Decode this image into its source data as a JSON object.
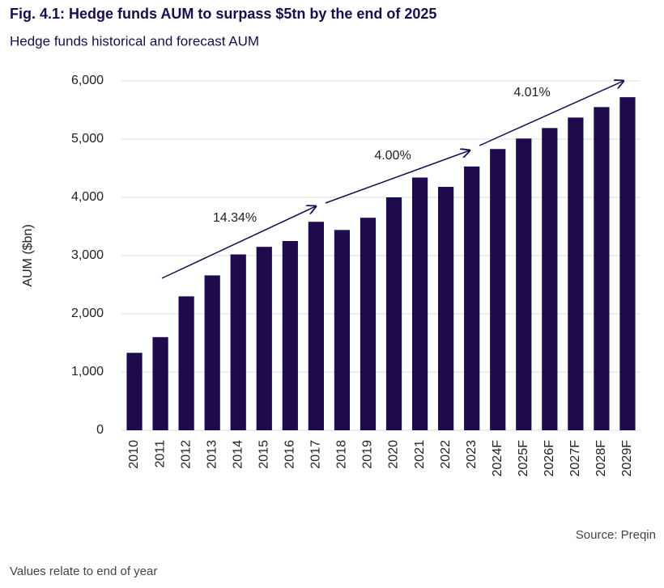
{
  "chart_data": {
    "type": "bar",
    "title": "Fig. 4.1: Hedge funds AUM to surpass $5tn by the end of 2025",
    "subtitle": "Hedge funds historical and forecast AUM",
    "y_label": "AUM ($bn)",
    "categories": [
      "2010",
      "2011",
      "2012",
      "2013",
      "2014",
      "2015",
      "2016",
      "2017",
      "2018",
      "2019",
      "2020",
      "2021",
      "2022",
      "2023",
      "2024F",
      "2025F",
      "2026F",
      "2027F",
      "2028F",
      "2029F"
    ],
    "values": [
      1330,
      1600,
      2300,
      2660,
      3020,
      3150,
      3250,
      3580,
      3440,
      3650,
      4000,
      4340,
      4180,
      4530,
      4830,
      5010,
      5190,
      5370,
      5550,
      5720
    ],
    "color": "#1d0b4e",
    "ylim": [
      0,
      6000
    ],
    "yticks": [
      0,
      {
        "value": 1000,
        "label": "1,000"
      },
      {
        "value": 2000,
        "label": "2,000"
      },
      {
        "value": 3000,
        "label": "3,000"
      },
      {
        "value": 4000,
        "label": "4,000"
      },
      {
        "value": 5000,
        "label": "5,000"
      },
      {
        "value": 6000,
        "label": "6,000"
      }
    ],
    "grid": true,
    "annotations": [
      "14.34%",
      "4.00%",
      "4.01%"
    ],
    "source": "Source: Preqin",
    "note": "Values relate to end of year"
  }
}
